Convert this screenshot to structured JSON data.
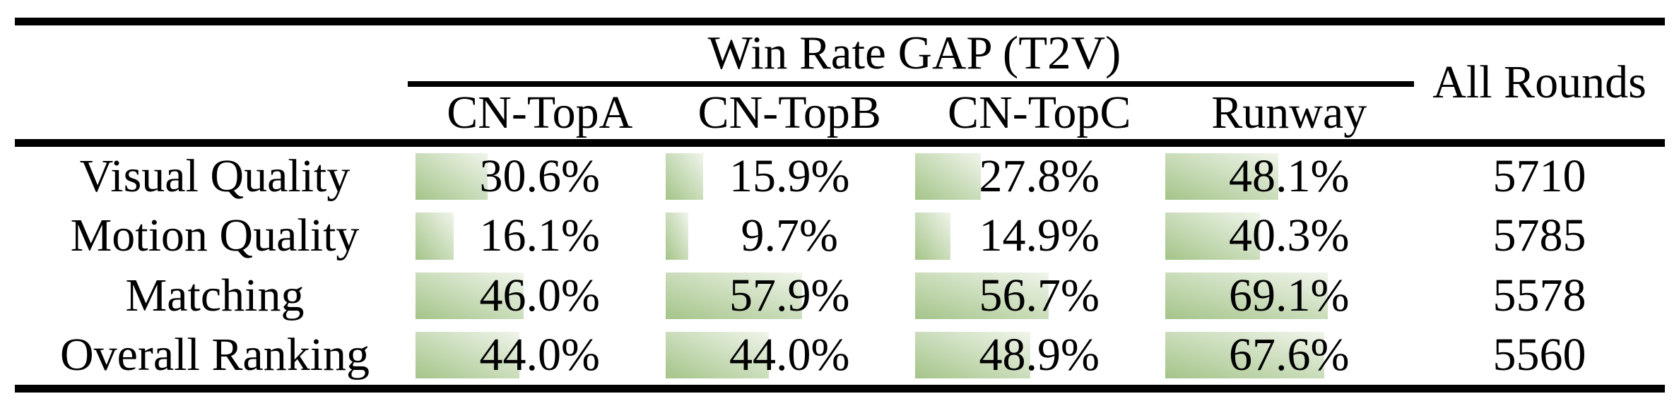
{
  "table": {
    "title": "Win Rate GAP (T2V)",
    "all_rounds_header": "All Rounds",
    "columns": [
      "CN-TopA",
      "CN-TopB",
      "CN-TopC",
      "Runway"
    ],
    "rows": [
      {
        "label": "Visual Quality",
        "values": [
          30.6,
          15.9,
          27.8,
          48.1
        ],
        "value_labels": [
          "30.6%",
          "15.9%",
          "27.8%",
          "48.1%"
        ],
        "all_rounds": "5710"
      },
      {
        "label": "Motion Quality",
        "values": [
          16.1,
          9.7,
          14.9,
          40.3
        ],
        "value_labels": [
          "16.1%",
          "9.7%",
          "14.9%",
          "40.3%"
        ],
        "all_rounds": "5785"
      },
      {
        "label": "Matching",
        "values": [
          46.0,
          57.9,
          56.7,
          69.1
        ],
        "value_labels": [
          "46.0%",
          "57.9%",
          "56.7%",
          "69.1%"
        ],
        "all_rounds": "5578"
      },
      {
        "label": "Overall Ranking",
        "values": [
          44.0,
          44.0,
          48.9,
          67.6
        ],
        "value_labels": [
          "44.0%",
          "44.0%",
          "48.9%",
          "67.6%"
        ],
        "all_rounds": "5560"
      }
    ],
    "colors": {
      "bar_gradient_start": "#a4c489",
      "bar_gradient_end": "#f0f5eb",
      "rule": "#000000",
      "text": "#000000",
      "background": "#ffffff"
    }
  },
  "chart_data": {
    "type": "table",
    "title": "Win Rate GAP (T2V)",
    "columns": [
      "",
      "CN-TopA",
      "CN-TopB",
      "CN-TopC",
      "Runway",
      "All Rounds"
    ],
    "rows": [
      [
        "Visual Quality",
        30.6,
        15.9,
        27.8,
        48.1,
        5710
      ],
      [
        "Motion Quality",
        16.1,
        9.7,
        14.9,
        40.3,
        5785
      ],
      [
        "Matching",
        46.0,
        57.9,
        56.7,
        69.1,
        5578
      ],
      [
        "Overall Ranking",
        44.0,
        44.0,
        48.9,
        67.6,
        5560
      ]
    ],
    "cell_bars": {
      "applies_to_columns": [
        "CN-TopA",
        "CN-TopB",
        "CN-TopC",
        "Runway"
      ],
      "unit": "percent",
      "bar_color": "#a4c489"
    }
  }
}
